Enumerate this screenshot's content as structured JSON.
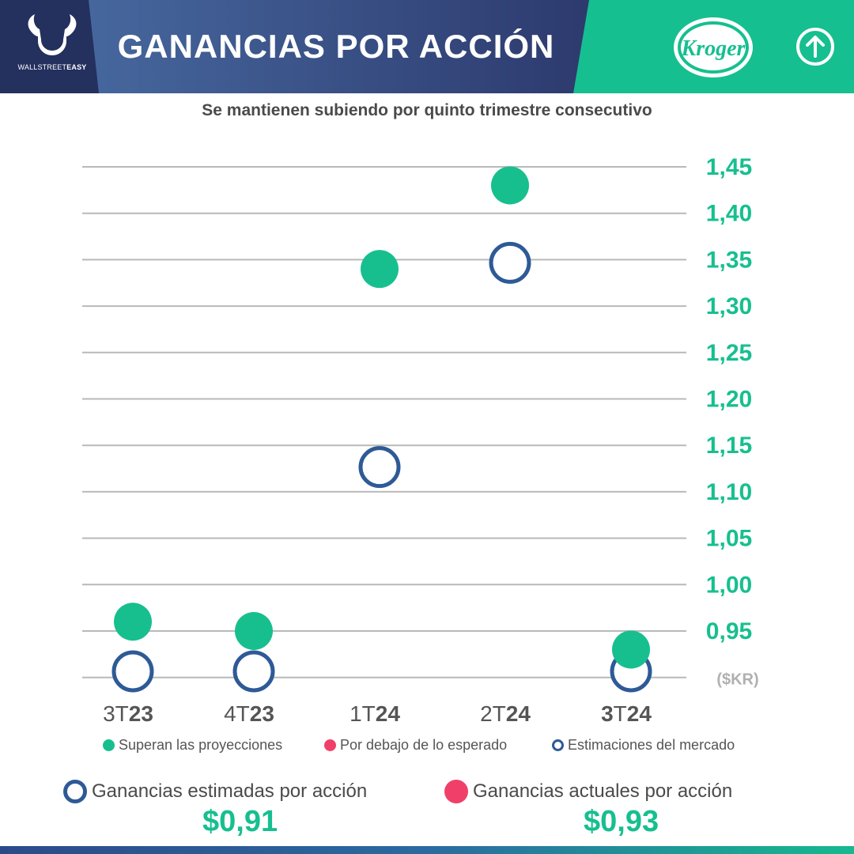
{
  "header": {
    "brand_name_light": "WALLSTREET",
    "brand_name_bold": "EASY",
    "title": "GANANCIAS POR ACCIÓN",
    "company_logo_text": "Kroger",
    "trend_icon": "arrow-up-circle-icon"
  },
  "subtitle": "Se mantienen subiendo por quinto trimestre consecutivo",
  "colors": {
    "navy": "#2a3364",
    "blue": "#3a6ea5",
    "green": "#17bf8f",
    "red": "#f0406a",
    "estimate_ring": "#2e5a96"
  },
  "chart_data": {
    "type": "scatter",
    "categories": [
      "3T23",
      "4T23",
      "1T24",
      "2T24",
      "3T24"
    ],
    "category_labels": [
      {
        "light": "3T",
        "bold": "23",
        "lead_bold": false
      },
      {
        "light": "4T",
        "bold": "23",
        "lead_bold": false
      },
      {
        "light": "1T",
        "bold": "24",
        "lead_bold": false
      },
      {
        "light": "2T",
        "bold": "24",
        "lead_bold": false
      },
      {
        "light": "T",
        "bold": "24",
        "lead_bold": true,
        "lead": "3"
      }
    ],
    "series": [
      {
        "name": "Ganancias actuales por acción",
        "values": [
          0.96,
          0.95,
          1.34,
          1.43,
          0.93
        ]
      },
      {
        "name": "Estimaciones del mercado",
        "values": [
          0.91,
          0.91,
          1.13,
          1.35,
          0.91
        ]
      }
    ],
    "y_ticks": [
      "1,45",
      "1,40",
      "1,35",
      "1,30",
      "1,25",
      "1,20",
      "1,15",
      "1,10",
      "1,05",
      "1,00",
      "0,95"
    ],
    "y_unit": "($KR)",
    "ylim": [
      0.9,
      1.45
    ],
    "grid": true
  },
  "legend": {
    "beat": "Superan las proyecciones",
    "miss": "Por debajo de lo esperado",
    "estimate": "Estimaciones del mercado"
  },
  "summary": {
    "estimated_label": "Ganancias estimadas por acción",
    "estimated_value": "$0,91",
    "actual_label": "Ganancias actuales por acción",
    "actual_value": "$0,93"
  }
}
